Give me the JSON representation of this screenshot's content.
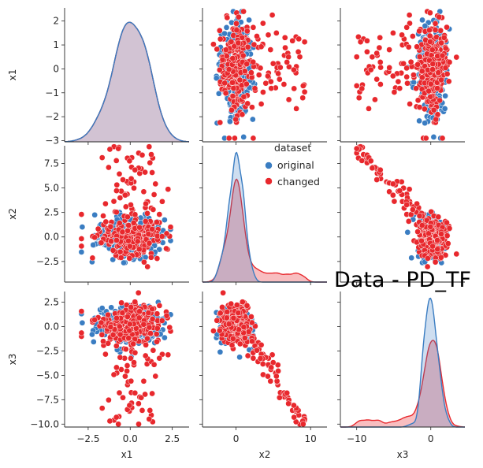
{
  "chart_data": {
    "type": "scatter",
    "title": "Data - PD_TF",
    "variables": [
      "x1",
      "x2",
      "x3"
    ],
    "legend": {
      "title": "dataset",
      "placement": "right of center panel"
    },
    "colors": {
      "original": "#3a7dc2",
      "changed": "#e8282d"
    },
    "axes": {
      "x1": {
        "range": [
          -3.9,
          3.5
        ],
        "xticks": [
          -2.5,
          0.0,
          2.5
        ],
        "yticks": [
          -3,
          -2,
          -1,
          0,
          1,
          2
        ],
        "yrange": [
          -3.05,
          2.6
        ]
      },
      "x2": {
        "range": [
          -4.6,
          9.3
        ],
        "xticks": [
          0,
          10
        ],
        "xrange": [
          -4.5,
          12.2
        ],
        "yticks": [
          -2.5,
          0.0,
          2.5,
          5.0,
          7.5
        ]
      },
      "x3": {
        "range": [
          -10.3,
          3.6
        ],
        "xticks": [
          -10,
          0
        ],
        "xrange": [
          -12.2,
          4.6
        ],
        "yticks": [
          -10.0,
          -7.5,
          -5.0,
          -2.5,
          0.0,
          2.5
        ]
      }
    },
    "series": [
      {
        "name": "original",
        "summary": {
          "x1": {
            "mean": 0.0,
            "sd": 1.0
          },
          "x2": {
            "mean": 0.0,
            "sd": 1.0
          },
          "x3": {
            "mean": 0.0,
            "sd": 1.0
          }
        },
        "kde_peak": {
          "x1": 0.0,
          "x2": 0.1,
          "x3": 0.0
        },
        "samples": [
          [
            0.1,
            -0.8,
            0.4
          ],
          [
            -1.5,
            0.9,
            1.2
          ],
          [
            1.4,
            -1.6,
            -0.3
          ],
          [
            -0.3,
            2.4,
            -0.9
          ],
          [
            0.7,
            0.2,
            2.6
          ],
          [
            2.2,
            -0.1,
            0.5
          ],
          [
            -2.6,
            1.1,
            -1.3
          ],
          [
            -1.0,
            -2.2,
            0.8
          ],
          [
            0.4,
            1.6,
            -2.2
          ],
          [
            1.8,
            0.7,
            1.7
          ],
          [
            -0.6,
            -1.1,
            -0.5
          ],
          [
            2.5,
            -2.4,
            0.2
          ],
          [
            -2.0,
            0.0,
            2.0
          ],
          [
            0.9,
            -0.4,
            -1.6
          ],
          [
            -0.2,
            2.7,
            0.9
          ]
        ]
      },
      {
        "name": "changed",
        "summary": {
          "x1": {
            "mean": 0.0,
            "sd": 1.0
          },
          "x2": {
            "range": [
              -3.0,
              9.2
            ],
            "skew": "right"
          },
          "x3": {
            "range": [
              -10.0,
              2.8
            ],
            "skew": "left"
          }
        },
        "kde_peak": {
          "x2": -0.9,
          "x3": 1.0
        },
        "samples": [
          [
            0.2,
            7.5,
            -6.8
          ],
          [
            -1.2,
            6.3,
            -5.4
          ],
          [
            1.6,
            8.7,
            -8.9
          ],
          [
            -0.5,
            5.0,
            -4.5
          ],
          [
            0.8,
            3.2,
            -3.1
          ],
          [
            -2.1,
            4.2,
            -2.8
          ],
          [
            1.1,
            2.0,
            -1.2
          ],
          [
            0.0,
            -1.3,
            1.1
          ],
          [
            -0.9,
            0.5,
            0.3
          ],
          [
            1.9,
            -2.1,
            1.5
          ],
          [
            -1.6,
            -0.4,
            0.8
          ],
          [
            0.4,
            1.0,
            -0.7
          ],
          [
            2.1,
            -1.7,
            2.2
          ],
          [
            -0.2,
            6.9,
            -7.6
          ],
          [
            1.3,
            3.8,
            -5.9
          ]
        ]
      }
    ]
  }
}
